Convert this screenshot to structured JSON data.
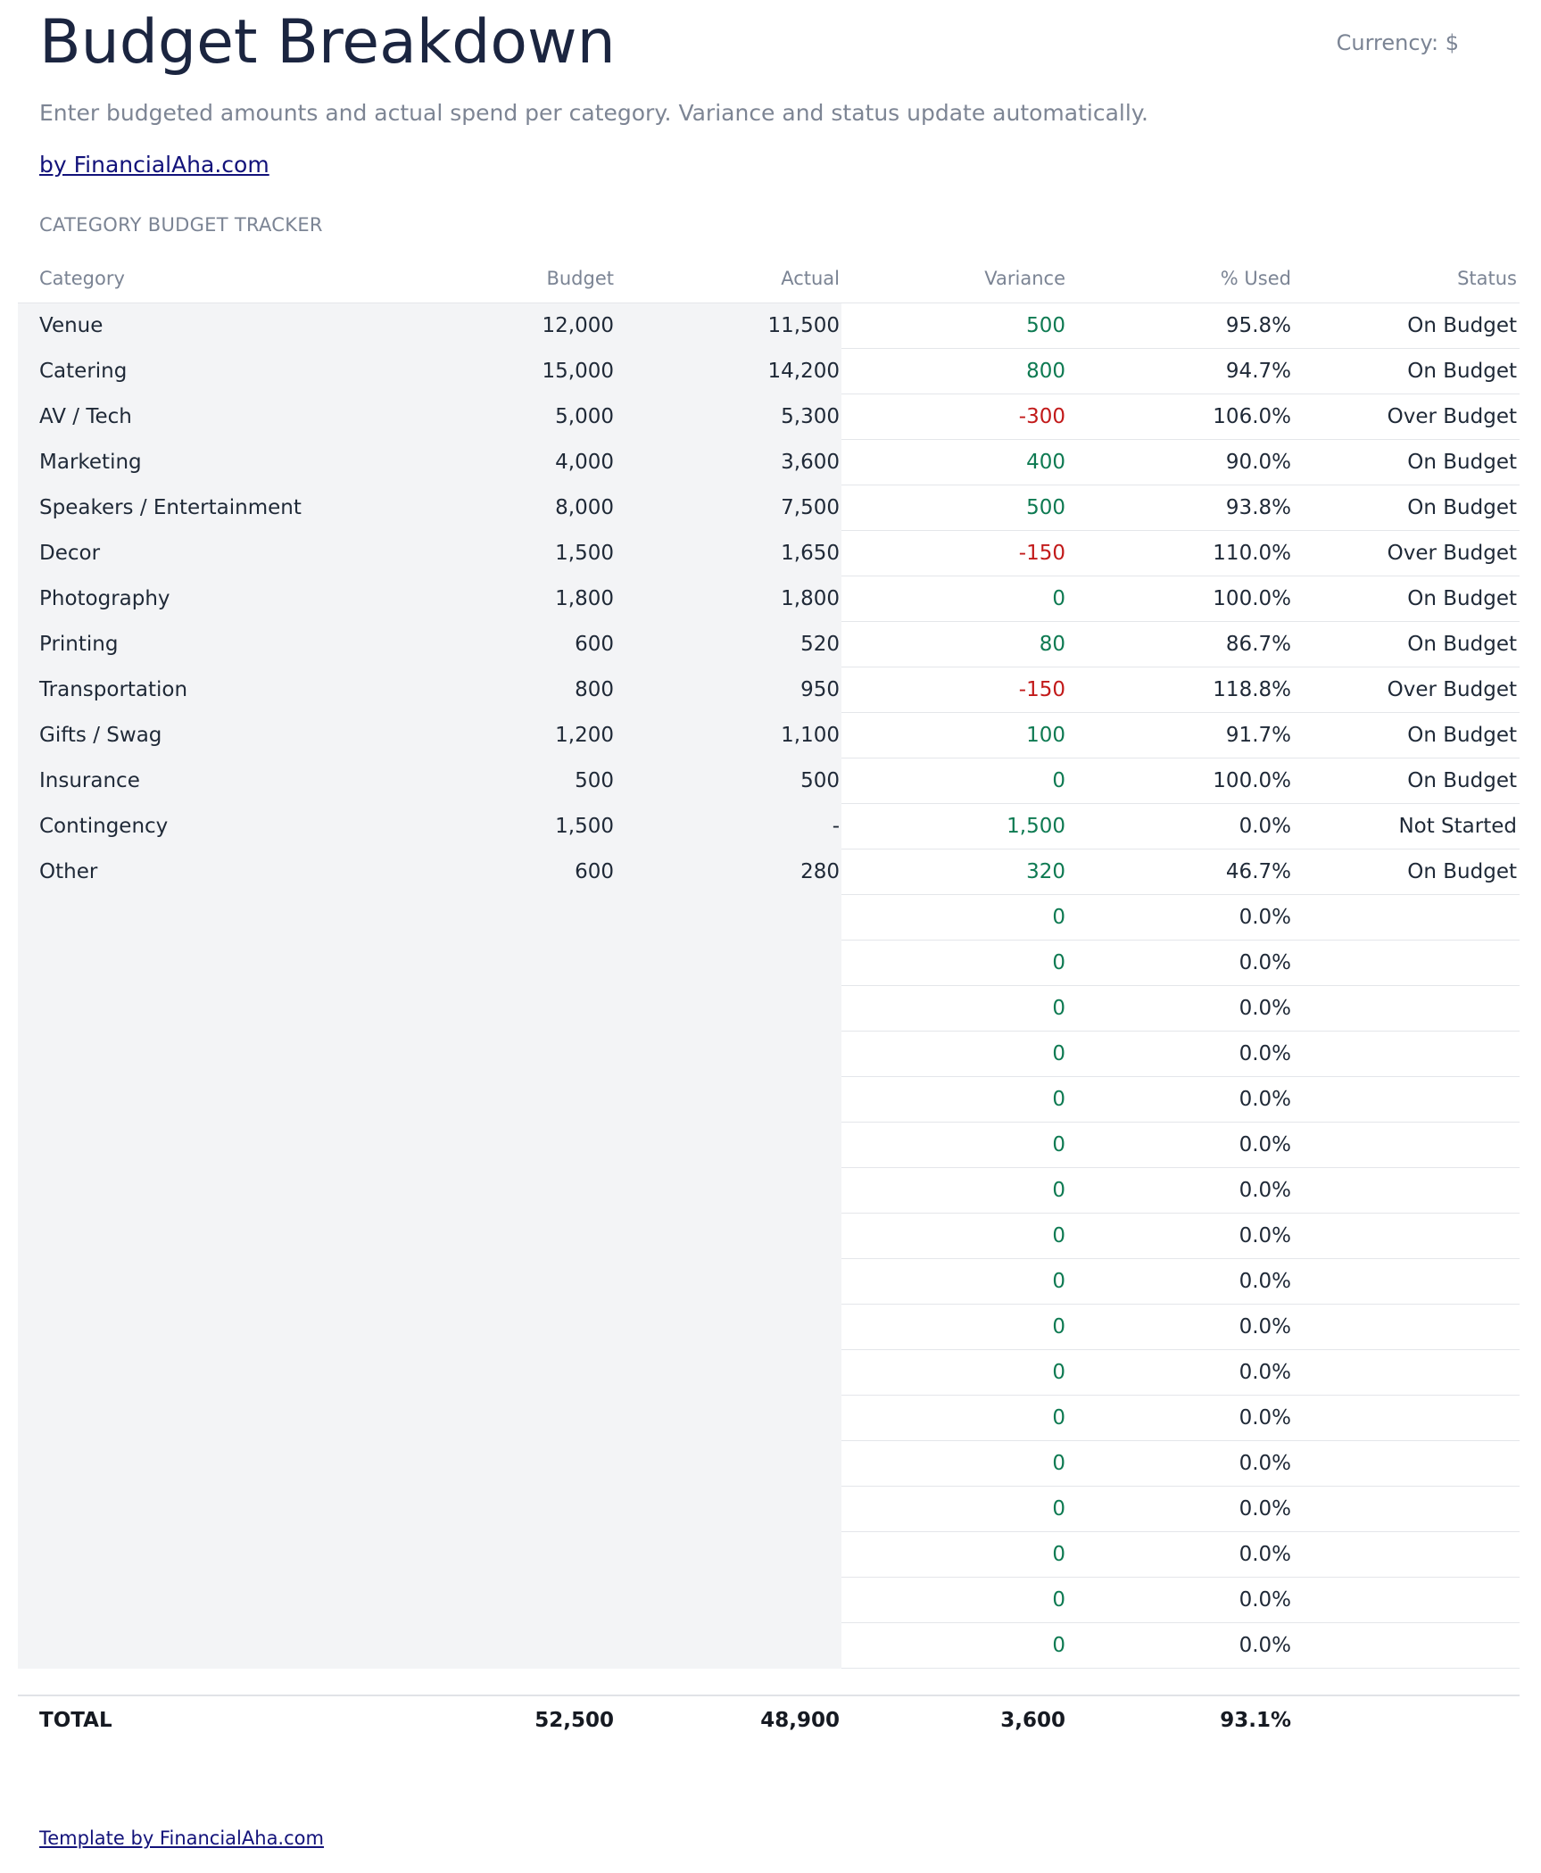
{
  "header": {
    "title": "Budget Breakdown",
    "currency": "Currency: $",
    "subtitle": "Enter budgeted amounts and actual spend per category. Variance and status update automatically.",
    "byline": "by FinancialAha.com",
    "section": "CATEGORY BUDGET TRACKER"
  },
  "columns": {
    "category": "Category",
    "budget": "Budget",
    "actual": "Actual",
    "variance": "Variance",
    "pct_used": "% Used",
    "status": "Status"
  },
  "rows": [
    {
      "category": "Venue",
      "budget": "12,000",
      "actual": "11,500",
      "variance": "500",
      "sign": "pos",
      "pct": "95.8%",
      "status": "On Budget"
    },
    {
      "category": "Catering",
      "budget": "15,000",
      "actual": "14,200",
      "variance": "800",
      "sign": "pos",
      "pct": "94.7%",
      "status": "On Budget"
    },
    {
      "category": "AV / Tech",
      "budget": "5,000",
      "actual": "5,300",
      "variance": "-300",
      "sign": "neg",
      "pct": "106.0%",
      "status": "Over Budget"
    },
    {
      "category": "Marketing",
      "budget": "4,000",
      "actual": "3,600",
      "variance": "400",
      "sign": "pos",
      "pct": "90.0%",
      "status": "On Budget"
    },
    {
      "category": "Speakers / Entertainment",
      "budget": "8,000",
      "actual": "7,500",
      "variance": "500",
      "sign": "pos",
      "pct": "93.8%",
      "status": "On Budget"
    },
    {
      "category": "Decor",
      "budget": "1,500",
      "actual": "1,650",
      "variance": "-150",
      "sign": "neg",
      "pct": "110.0%",
      "status": "Over Budget"
    },
    {
      "category": "Photography",
      "budget": "1,800",
      "actual": "1,800",
      "variance": "0",
      "sign": "pos",
      "pct": "100.0%",
      "status": "On Budget"
    },
    {
      "category": "Printing",
      "budget": "600",
      "actual": "520",
      "variance": "80",
      "sign": "pos",
      "pct": "86.7%",
      "status": "On Budget"
    },
    {
      "category": "Transportation",
      "budget": "800",
      "actual": "950",
      "variance": "-150",
      "sign": "neg",
      "pct": "118.8%",
      "status": "Over Budget"
    },
    {
      "category": "Gifts / Swag",
      "budget": "1,200",
      "actual": "1,100",
      "variance": "100",
      "sign": "pos",
      "pct": "91.7%",
      "status": "On Budget"
    },
    {
      "category": "Insurance",
      "budget": "500",
      "actual": "500",
      "variance": "0",
      "sign": "pos",
      "pct": "100.0%",
      "status": "On Budget"
    },
    {
      "category": "Contingency",
      "budget": "1,500",
      "actual": "-",
      "variance": "1,500",
      "sign": "pos",
      "pct": "0.0%",
      "status": "Not Started"
    },
    {
      "category": "Other",
      "budget": "600",
      "actual": "280",
      "variance": "320",
      "sign": "pos",
      "pct": "46.7%",
      "status": "On Budget"
    },
    {
      "category": "",
      "budget": "",
      "actual": "",
      "variance": "0",
      "sign": "pos",
      "pct": "0.0%",
      "status": ""
    },
    {
      "category": "",
      "budget": "",
      "actual": "",
      "variance": "0",
      "sign": "pos",
      "pct": "0.0%",
      "status": ""
    },
    {
      "category": "",
      "budget": "",
      "actual": "",
      "variance": "0",
      "sign": "pos",
      "pct": "0.0%",
      "status": ""
    },
    {
      "category": "",
      "budget": "",
      "actual": "",
      "variance": "0",
      "sign": "pos",
      "pct": "0.0%",
      "status": ""
    },
    {
      "category": "",
      "budget": "",
      "actual": "",
      "variance": "0",
      "sign": "pos",
      "pct": "0.0%",
      "status": ""
    },
    {
      "category": "",
      "budget": "",
      "actual": "",
      "variance": "0",
      "sign": "pos",
      "pct": "0.0%",
      "status": ""
    },
    {
      "category": "",
      "budget": "",
      "actual": "",
      "variance": "0",
      "sign": "pos",
      "pct": "0.0%",
      "status": ""
    },
    {
      "category": "",
      "budget": "",
      "actual": "",
      "variance": "0",
      "sign": "pos",
      "pct": "0.0%",
      "status": ""
    },
    {
      "category": "",
      "budget": "",
      "actual": "",
      "variance": "0",
      "sign": "pos",
      "pct": "0.0%",
      "status": ""
    },
    {
      "category": "",
      "budget": "",
      "actual": "",
      "variance": "0",
      "sign": "pos",
      "pct": "0.0%",
      "status": ""
    },
    {
      "category": "",
      "budget": "",
      "actual": "",
      "variance": "0",
      "sign": "pos",
      "pct": "0.0%",
      "status": ""
    },
    {
      "category": "",
      "budget": "",
      "actual": "",
      "variance": "0",
      "sign": "pos",
      "pct": "0.0%",
      "status": ""
    },
    {
      "category": "",
      "budget": "",
      "actual": "",
      "variance": "0",
      "sign": "pos",
      "pct": "0.0%",
      "status": ""
    },
    {
      "category": "",
      "budget": "",
      "actual": "",
      "variance": "0",
      "sign": "pos",
      "pct": "0.0%",
      "status": ""
    },
    {
      "category": "",
      "budget": "",
      "actual": "",
      "variance": "0",
      "sign": "pos",
      "pct": "0.0%",
      "status": ""
    },
    {
      "category": "",
      "budget": "",
      "actual": "",
      "variance": "0",
      "sign": "pos",
      "pct": "0.0%",
      "status": ""
    },
    {
      "category": "",
      "budget": "",
      "actual": "",
      "variance": "0",
      "sign": "pos",
      "pct": "0.0%",
      "status": ""
    }
  ],
  "total": {
    "label": "TOTAL",
    "budget": "52,500",
    "actual": "48,900",
    "variance": "3,600",
    "pct": "93.1%"
  },
  "footer": {
    "link": "Template by FinancialAha.com"
  },
  "colors": {
    "title": "#1b2540",
    "muted": "#7b8494",
    "link": "#12127a",
    "positive": "#0e7a52",
    "negative": "#c21a1a",
    "input_shade": "#f3f4f6"
  }
}
